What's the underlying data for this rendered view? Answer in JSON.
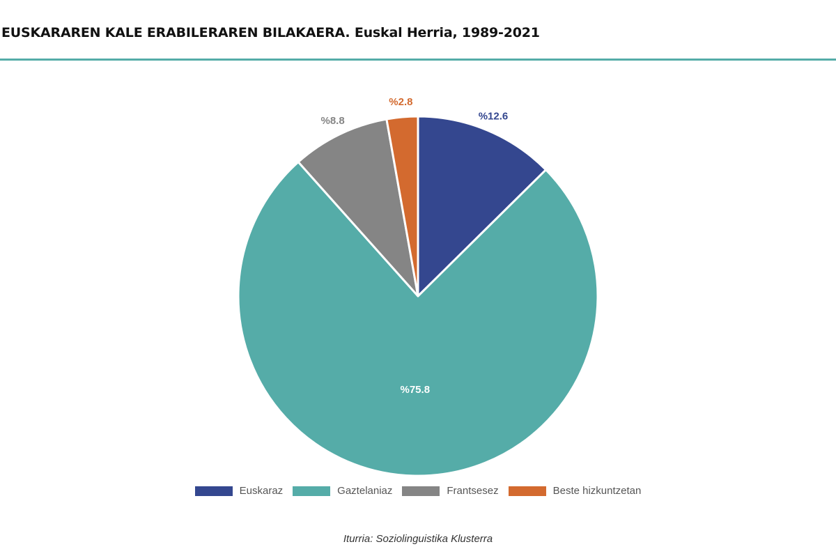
{
  "header": {
    "title_main": "EUSKARAREN KALE ERABILERAREN BILAKAERA.",
    "title_sub": "Euskal Herria, 1989-2021"
  },
  "chart_data": {
    "type": "pie",
    "title": "EUSKARAREN KALE ERABILERAREN BILAKAERA. Euskal Herria, 1989-2021",
    "categories": [
      "Euskaraz",
      "Gaztelaniaz",
      "Frantsesez",
      "Beste hizkuntzetan"
    ],
    "values": [
      12.6,
      75.8,
      8.8,
      2.8
    ],
    "labels": [
      "%12.6",
      "%75.8",
      "%8.8",
      "%2.8"
    ],
    "colors": [
      "#34478f",
      "#55aca8",
      "#858585",
      "#d36a2f"
    ],
    "label_colors": [
      "#34478f",
      "#ffffff",
      "#858585",
      "#d36a2f"
    ],
    "legend_position": "bottom",
    "start_angle": "12 o'clock, clockwise"
  },
  "legend": {
    "items": [
      {
        "label": "Euskaraz",
        "color": "#34478f"
      },
      {
        "label": "Gaztelaniaz",
        "color": "#55aca8"
      },
      {
        "label": "Frantsesez",
        "color": "#858585"
      },
      {
        "label": "Beste hizkuntzetan",
        "color": "#d36a2f"
      }
    ]
  },
  "footer": {
    "source": "Iturria: Soziolinguistika Klusterra"
  }
}
